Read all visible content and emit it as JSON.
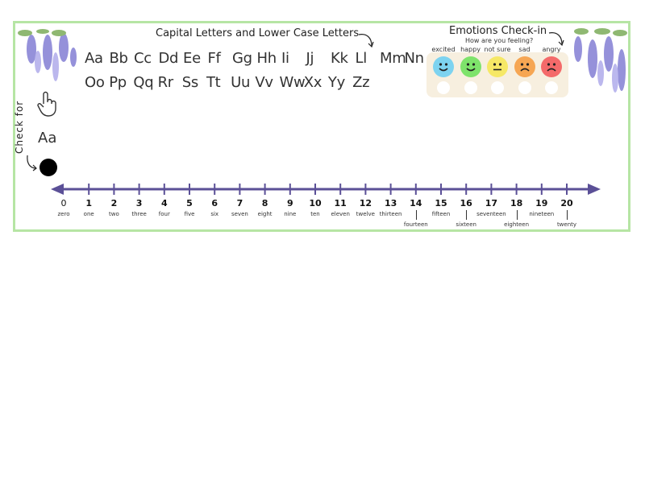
{
  "header": {
    "letters_title": "Capital Letters and Lower Case Letters",
    "emotions_title": "Emotions Check-in",
    "emotions_question": "How are you feeling?"
  },
  "alphabet": {
    "row1": [
      "Aa",
      "Bb",
      "Cc",
      "Dd",
      "Ee",
      "Ff",
      "Gg",
      "Hh",
      "Ii",
      "Jj",
      "Kk",
      "Ll",
      "Mm",
      "Nn"
    ],
    "row2": [
      "Oo",
      "Pp",
      "Qq",
      "Rr",
      "Ss",
      "Tt",
      "Uu",
      "Vv",
      "Ww",
      "Xx",
      "Yy",
      "Zz"
    ]
  },
  "emotions": [
    {
      "label": "excited",
      "color": "#7dd3f0"
    },
    {
      "label": "happy",
      "color": "#7ee36b"
    },
    {
      "label": "not sure",
      "color": "#f6e866"
    },
    {
      "label": "sad",
      "color": "#f6a653"
    },
    {
      "label": "angry",
      "color": "#f46a6a"
    }
  ],
  "check_for": {
    "label": "Check for",
    "sample": "Aa"
  },
  "number_line": {
    "color": "#5b5097",
    "numbers": [
      "0",
      "1",
      "2",
      "3",
      "4",
      "5",
      "6",
      "7",
      "8",
      "9",
      "10",
      "11",
      "12",
      "13",
      "14",
      "15",
      "16",
      "17",
      "18",
      "19",
      "20"
    ],
    "words": [
      "zero",
      "one",
      "two",
      "three",
      "four",
      "five",
      "six",
      "seven",
      "eight",
      "nine",
      "ten",
      "eleven",
      "twelve",
      "thirteen",
      "fourteen",
      "fifteen",
      "sixteen",
      "seventeen",
      "eighteen",
      "nineteen",
      "twenty"
    ]
  }
}
